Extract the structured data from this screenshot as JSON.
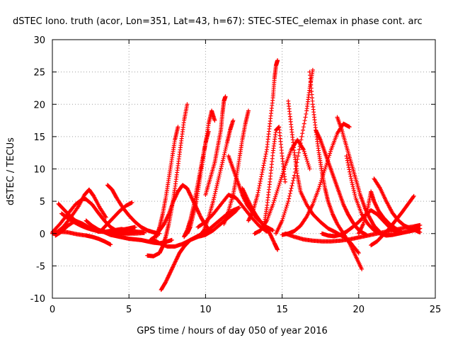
{
  "chart_data": {
    "type": "scatter",
    "title": "dSTEC Iono. truth (acor, Lon=351, Lat=43, h=67): STEC-STEC_elemax in phase cont. arc",
    "xlabel": "GPS time / hours of day 050 of year 2016",
    "ylabel": "dSTEC  / TECUs",
    "xlim": [
      0,
      25
    ],
    "ylim": [
      -10,
      30
    ],
    "xticks": [
      0,
      5,
      10,
      15,
      20,
      25
    ],
    "yticks": [
      -10,
      -5,
      0,
      5,
      10,
      15,
      20,
      25,
      30
    ],
    "grid": true,
    "marker": "+",
    "marker_color": "#ff0000",
    "series": [
      {
        "x": [
          0.0,
          0.4,
          1.0,
          1.6,
          2.2,
          2.6,
          3.0,
          3.4,
          3.8
        ],
        "y": [
          0.0,
          0.3,
          0.2,
          -0.1,
          -0.3,
          -0.5,
          -0.8,
          -1.2,
          -1.7
        ]
      },
      {
        "x": [
          0.0,
          0.5,
          1.0,
          1.5,
          2.0,
          2.2,
          2.6,
          3.0,
          3.4,
          3.8,
          4.2,
          4.6,
          5.0,
          5.4
        ],
        "y": [
          0.2,
          1.5,
          3.0,
          4.5,
          5.4,
          5.3,
          4.5,
          3.2,
          2.0,
          1.0,
          0.4,
          0.1,
          0.0,
          0.2
        ]
      },
      {
        "x": [
          0.2,
          0.7,
          1.2,
          1.7,
          2.1,
          2.4,
          2.7,
          3.1,
          3.5
        ],
        "y": [
          0.0,
          1.0,
          2.5,
          4.2,
          6.0,
          6.8,
          5.8,
          4.0,
          2.5
        ]
      },
      {
        "x": [
          0.4,
          0.8,
          1.2,
          1.6,
          2.0,
          2.4,
          2.8,
          3.2,
          3.6,
          4.0,
          4.4,
          4.8,
          5.4,
          6.0
        ],
        "y": [
          4.6,
          3.6,
          2.6,
          1.8,
          1.2,
          0.8,
          0.5,
          0.3,
          0.2,
          0.1,
          0.1,
          0.0,
          0.0,
          0.1
        ]
      },
      {
        "x": [
          0.2,
          0.6,
          1.0,
          1.5,
          2.0,
          2.5,
          3.0,
          3.5,
          4.0,
          4.5,
          5.0,
          5.5,
          6.0
        ],
        "y": [
          -0.3,
          0.3,
          1.2,
          2.0,
          1.5,
          0.8,
          0.3,
          0.3,
          0.5,
          0.7,
          0.5,
          0.3,
          0.2
        ]
      },
      {
        "x": [
          0.6,
          1.0,
          1.4,
          1.8,
          2.2,
          2.6,
          3.0,
          3.4,
          3.8,
          4.2,
          4.6,
          5.0,
          5.4
        ],
        "y": [
          3.1,
          2.4,
          1.8,
          1.3,
          0.9,
          0.6,
          0.4,
          0.3,
          0.3,
          0.4,
          0.6,
          0.8,
          1.0
        ]
      },
      {
        "x": [
          2.2,
          2.6,
          3.0,
          3.4,
          3.8,
          4.2,
          4.6,
          5.0,
          5.4,
          5.8,
          6.2,
          6.6,
          7.0,
          7.4,
          7.8
        ],
        "y": [
          2.0,
          1.2,
          0.6,
          0.2,
          -0.2,
          -0.4,
          -0.6,
          -0.8,
          -0.9,
          -1.0,
          -1.2,
          -1.4,
          -1.5,
          -1.3,
          -1.0
        ]
      },
      {
        "x": [
          3.6,
          3.9,
          4.2,
          4.6,
          5.0,
          5.4,
          5.8,
          6.2,
          6.6,
          7.0
        ],
        "y": [
          7.5,
          6.8,
          5.5,
          4.0,
          2.8,
          1.8,
          1.0,
          0.5,
          0.2,
          0.0
        ]
      },
      {
        "x": [
          3.2,
          3.6,
          4.0,
          4.4,
          4.8,
          5.2
        ],
        "y": [
          0.5,
          1.5,
          2.5,
          3.5,
          4.3,
          4.8
        ]
      },
      {
        "x": [
          6.2,
          6.6,
          7.0,
          7.2,
          7.4,
          7.6,
          7.8,
          8.0,
          8.2,
          8.4,
          8.6,
          8.8
        ],
        "y": [
          -3.4,
          -3.5,
          -3.0,
          -2.0,
          -0.5,
          1.5,
          4.0,
          7.0,
          10.5,
          14.0,
          17.5,
          20.0
        ]
      },
      {
        "x": [
          7.1,
          7.4,
          7.7,
          8.0,
          8.3,
          8.6,
          9.0,
          9.4,
          9.8,
          10.2,
          10.6,
          11.0,
          11.4,
          11.8,
          12.2
        ],
        "y": [
          -8.7,
          -7.5,
          -6.0,
          -4.5,
          -3.0,
          -2.0,
          -1.0,
          -0.5,
          0.0,
          0.6,
          1.4,
          2.2,
          3.0,
          3.6,
          4.0
        ]
      },
      {
        "x": [
          6.4,
          6.7,
          7.0,
          7.3,
          7.6,
          7.9,
          8.2,
          8.5,
          8.8,
          9.1,
          9.4,
          9.7,
          10.0,
          10.3
        ],
        "y": [
          -1.0,
          -0.5,
          0.5,
          1.5,
          3.0,
          5.0,
          6.5,
          7.5,
          7.0,
          5.5,
          4.0,
          2.5,
          1.3,
          0.4
        ]
      },
      {
        "x": [
          6.8,
          7.0,
          7.2,
          7.4,
          7.6,
          7.8,
          8.0,
          8.2
        ],
        "y": [
          -0.5,
          1.0,
          3.0,
          5.5,
          8.5,
          11.5,
          14.5,
          16.5
        ]
      },
      {
        "x": [
          6.5,
          7.0,
          7.5,
          8.0,
          8.5,
          9.0,
          9.5,
          10.0,
          10.5,
          11.0,
          11.5,
          12.0
        ],
        "y": [
          -0.8,
          -1.5,
          -2.0,
          -2.0,
          -1.6,
          -1.0,
          -0.5,
          -0.2,
          0.5,
          1.5,
          2.5,
          3.5
        ]
      },
      {
        "x": [
          8.6,
          8.8,
          9.0,
          9.2,
          9.4,
          9.6,
          9.8,
          10.0,
          10.2
        ],
        "y": [
          -0.5,
          0.5,
          2.0,
          4.0,
          6.5,
          9.0,
          11.5,
          14.0,
          15.8
        ]
      },
      {
        "x": [
          8.8,
          9.0,
          9.2,
          9.4,
          9.6,
          9.8,
          10.0,
          10.2,
          10.4,
          10.6
        ],
        "y": [
          0.0,
          1.0,
          3.0,
          5.0,
          8.0,
          11.0,
          14.0,
          17.0,
          19.0,
          17.5
        ]
      },
      {
        "x": [
          10.0,
          10.3,
          10.6,
          10.8,
          11.0,
          11.1,
          11.2,
          11.3
        ],
        "y": [
          6.0,
          8.5,
          11.0,
          13.5,
          16.0,
          18.5,
          20.5,
          21.2
        ]
      },
      {
        "x": [
          9.6,
          9.9,
          10.2,
          10.5,
          10.8,
          11.1,
          11.4,
          11.6,
          11.8
        ],
        "y": [
          -0.4,
          0.5,
          2.5,
          5.0,
          8.0,
          11.0,
          14.0,
          16.0,
          17.5
        ]
      },
      {
        "x": [
          11.2,
          11.5,
          11.8,
          12.0,
          12.2,
          12.4,
          12.6,
          12.8
        ],
        "y": [
          1.5,
          3.5,
          6.0,
          8.5,
          11.5,
          14.5,
          17.0,
          19.0
        ]
      },
      {
        "x": [
          9.5,
          10.0,
          10.5,
          11.0,
          11.5,
          12.0,
          12.5,
          13.0,
          13.5,
          14.0
        ],
        "y": [
          1.0,
          1.8,
          3.0,
          4.5,
          6.0,
          5.5,
          4.0,
          2.5,
          1.2,
          0.3
        ]
      },
      {
        "x": [
          11.5,
          11.8,
          12.1,
          12.4,
          12.7,
          13.0,
          13.3,
          13.6,
          14.0,
          14.4
        ],
        "y": [
          12.0,
          10.0,
          8.0,
          6.0,
          4.5,
          3.5,
          2.5,
          1.8,
          1.0,
          0.5
        ]
      },
      {
        "x": [
          12.4,
          12.7,
          13.0,
          13.3,
          13.6,
          13.9,
          14.2,
          14.5,
          14.7
        ],
        "y": [
          7.0,
          5.5,
          4.0,
          2.8,
          1.8,
          1.0,
          0.0,
          -1.5,
          -2.5
        ]
      },
      {
        "x": [
          12.8,
          13.1,
          13.4,
          13.7,
          14.0,
          14.2,
          14.4,
          14.5,
          14.6,
          14.7
        ],
        "y": [
          2.0,
          3.5,
          6.0,
          9.5,
          13.0,
          17.0,
          21.0,
          24.0,
          26.0,
          26.8
        ]
      },
      {
        "x": [
          13.8,
          14.0,
          14.2,
          14.4,
          14.6,
          14.8,
          15.0,
          15.2
        ],
        "y": [
          1.0,
          4.0,
          8.0,
          12.5,
          16.0,
          16.5,
          12.0,
          8.0
        ]
      },
      {
        "x": [
          13.2,
          13.6,
          14.0,
          14.4,
          14.8,
          15.2,
          15.6,
          16.0,
          16.4,
          16.8
        ],
        "y": [
          0.0,
          0.5,
          2.0,
          4.5,
          7.5,
          10.5,
          13.0,
          14.5,
          13.0,
          10.0
        ]
      },
      {
        "x": [
          15.4,
          15.6,
          15.8,
          16.0,
          16.2,
          16.6,
          17.0,
          17.5,
          18.0,
          18.5,
          19.0,
          19.5,
          20.0
        ],
        "y": [
          20.5,
          16.5,
          12.5,
          9.0,
          6.5,
          4.5,
          3.0,
          1.8,
          0.8,
          0.2,
          -0.5,
          -1.5,
          -3.0
        ]
      },
      {
        "x": [
          16.8,
          17.0,
          17.2,
          17.4,
          17.6,
          17.8,
          18.0,
          18.3,
          18.6,
          19.0,
          19.4,
          19.8,
          20.2
        ],
        "y": [
          25.0,
          20.0,
          16.0,
          12.5,
          9.5,
          7.0,
          5.0,
          3.0,
          1.5,
          0.0,
          -1.5,
          -3.5,
          -5.5
        ]
      },
      {
        "x": [
          14.6,
          15.0,
          15.4,
          15.8,
          16.2,
          16.6,
          16.8,
          17.0
        ],
        "y": [
          0.0,
          2.0,
          5.0,
          9.0,
          14.0,
          19.0,
          22.5,
          25.3
        ]
      },
      {
        "x": [
          15.0,
          15.4,
          15.8,
          16.2,
          16.6,
          17.0,
          17.4,
          17.8,
          18.2,
          18.6,
          19.0,
          19.4
        ],
        "y": [
          -0.2,
          0.0,
          0.4,
          1.2,
          2.6,
          4.5,
          7.0,
          10.0,
          13.0,
          15.5,
          17.0,
          16.5
        ]
      },
      {
        "x": [
          17.2,
          17.5,
          17.8,
          18.1,
          18.4,
          18.7,
          19.0,
          19.3,
          19.6,
          19.9,
          20.2,
          20.5
        ],
        "y": [
          16.0,
          14.5,
          12.5,
          10.5,
          8.5,
          6.5,
          4.5,
          3.0,
          1.8,
          0.8,
          0.2,
          -0.2
        ]
      },
      {
        "x": [
          18.6,
          18.9,
          19.2,
          19.5,
          19.8,
          20.1,
          20.4,
          20.7,
          21.0,
          21.4
        ],
        "y": [
          18.0,
          16.0,
          13.5,
          11.0,
          8.5,
          6.0,
          4.0,
          2.5,
          1.2,
          0.2
        ]
      },
      {
        "x": [
          19.2,
          19.5,
          19.8,
          20.2,
          20.6,
          21.0,
          21.4,
          21.8,
          22.2,
          22.6,
          23.0,
          23.4,
          23.8,
          24.0
        ],
        "y": [
          12.0,
          8.5,
          5.5,
          3.0,
          1.5,
          0.5,
          0.0,
          -0.3,
          -0.2,
          0.0,
          0.2,
          0.4,
          0.6,
          0.8
        ]
      },
      {
        "x": [
          20.0,
          20.3,
          20.6,
          20.8,
          21.0,
          21.3,
          21.6,
          22.0,
          22.4,
          22.8
        ],
        "y": [
          0.0,
          1.5,
          4.0,
          6.5,
          5.0,
          3.5,
          2.5,
          1.5,
          0.8,
          0.2
        ]
      },
      {
        "x": [
          21.0,
          21.4,
          21.8,
          22.2,
          22.6,
          23.0,
          23.4,
          23.8,
          24.0
        ],
        "y": [
          8.5,
          7.0,
          5.0,
          3.2,
          2.0,
          1.2,
          0.8,
          0.4,
          0.2
        ]
      },
      {
        "x": [
          20.8,
          21.2,
          21.6,
          22.0,
          22.4,
          22.8,
          23.2,
          23.6
        ],
        "y": [
          -1.8,
          -1.2,
          -0.2,
          0.8,
          2.0,
          3.2,
          4.5,
          5.8
        ]
      },
      {
        "x": [
          15.2,
          15.8,
          16.4,
          17.0,
          17.6,
          18.2,
          18.8,
          19.4,
          20.0,
          20.6,
          21.2,
          21.8,
          22.4,
          23.0,
          23.6,
          24.0
        ],
        "y": [
          0.0,
          -0.5,
          -0.9,
          -1.1,
          -1.2,
          -1.2,
          -1.1,
          -0.9,
          -0.6,
          -0.3,
          0.0,
          0.3,
          0.6,
          0.9,
          1.1,
          1.3
        ]
      },
      {
        "x": [
          17.6,
          18.0,
          18.4,
          18.8,
          19.2,
          19.6,
          20.0,
          20.4,
          20.8,
          21.2,
          21.6,
          22.0,
          22.4
        ],
        "y": [
          0.0,
          -0.3,
          -0.4,
          -0.2,
          0.3,
          1.0,
          1.8,
          2.8,
          3.6,
          3.0,
          2.0,
          1.0,
          0.3
        ]
      }
    ]
  }
}
